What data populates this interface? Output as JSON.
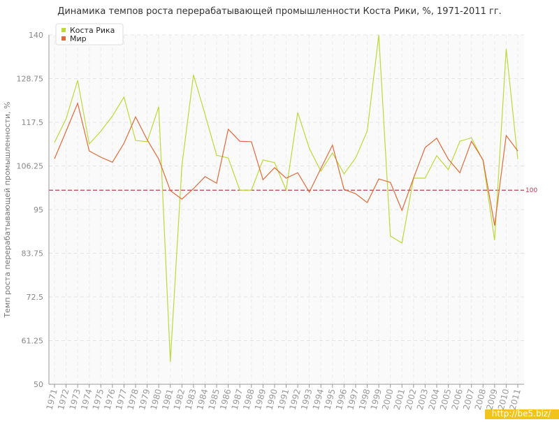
{
  "chart_data": {
    "type": "line",
    "title": "Динамика темпов роста перерабатывающей промышленности Коста Рики, %, 1971-2011 гг.",
    "y_label": "Темп роста перерабатывающей промышленности, %",
    "categories": [
      "1971",
      "1972",
      "1973",
      "1974",
      "1975",
      "1976",
      "1977",
      "1978",
      "1979",
      "1980",
      "1981",
      "1982",
      "1983",
      "1984",
      "1985",
      "1986",
      "1987",
      "1988",
      "1989",
      "1990",
      "1991",
      "1992",
      "1993",
      "1994",
      "1995",
      "1996",
      "1997",
      "1998",
      "1999",
      "2000",
      "2001",
      "2002",
      "2003",
      "2004",
      "2005",
      "2006",
      "2007",
      "2008",
      "2009",
      "2010",
      "2011"
    ],
    "series": [
      {
        "name": "Коста Рика",
        "color": "#bcd93c",
        "values": [
          112.3,
          118.4,
          128.3,
          111.9,
          115.2,
          119.1,
          124.0,
          112.8,
          112.5,
          121.5,
          55.8,
          106.3,
          129.7,
          119.5,
          109.0,
          108.3,
          100.0,
          100.0,
          107.8,
          107.1,
          100.0,
          120.0,
          110.8,
          104.9,
          109.6,
          104.2,
          108.3,
          115.2,
          140,
          88.2,
          86.4,
          103.1,
          103.1,
          108.9,
          105.3,
          112.6,
          113.5,
          107.6,
          87.1,
          136.4,
          108.0
        ]
      },
      {
        "name": "Мир",
        "color": "#dd6a3a",
        "values": [
          108.1,
          115.2,
          122.4,
          110.1,
          108.5,
          107.2,
          112.1,
          118.9,
          113.0,
          108.0,
          99.9,
          97.7,
          100.4,
          103.5,
          101.8,
          115.7,
          112.6,
          112.5,
          102.7,
          105.8,
          103.1,
          104.5,
          99.5,
          105.6,
          111.6,
          100.2,
          99.1,
          96.8,
          102.9,
          102.0,
          94.8,
          103.1,
          111.0,
          113.4,
          108.0,
          104.5,
          112.6,
          107.8,
          90.9,
          114.1,
          110.1
        ]
      }
    ],
    "ylim": [
      50,
      140
    ],
    "yticks": [
      50,
      61.25,
      72.5,
      83.75,
      95,
      106.25,
      117.5,
      128.75,
      140
    ],
    "grid": true,
    "reference_line": 100,
    "reference_color": "#b04050",
    "legend": "top-left",
    "watermark": "http://be5.biz/"
  }
}
